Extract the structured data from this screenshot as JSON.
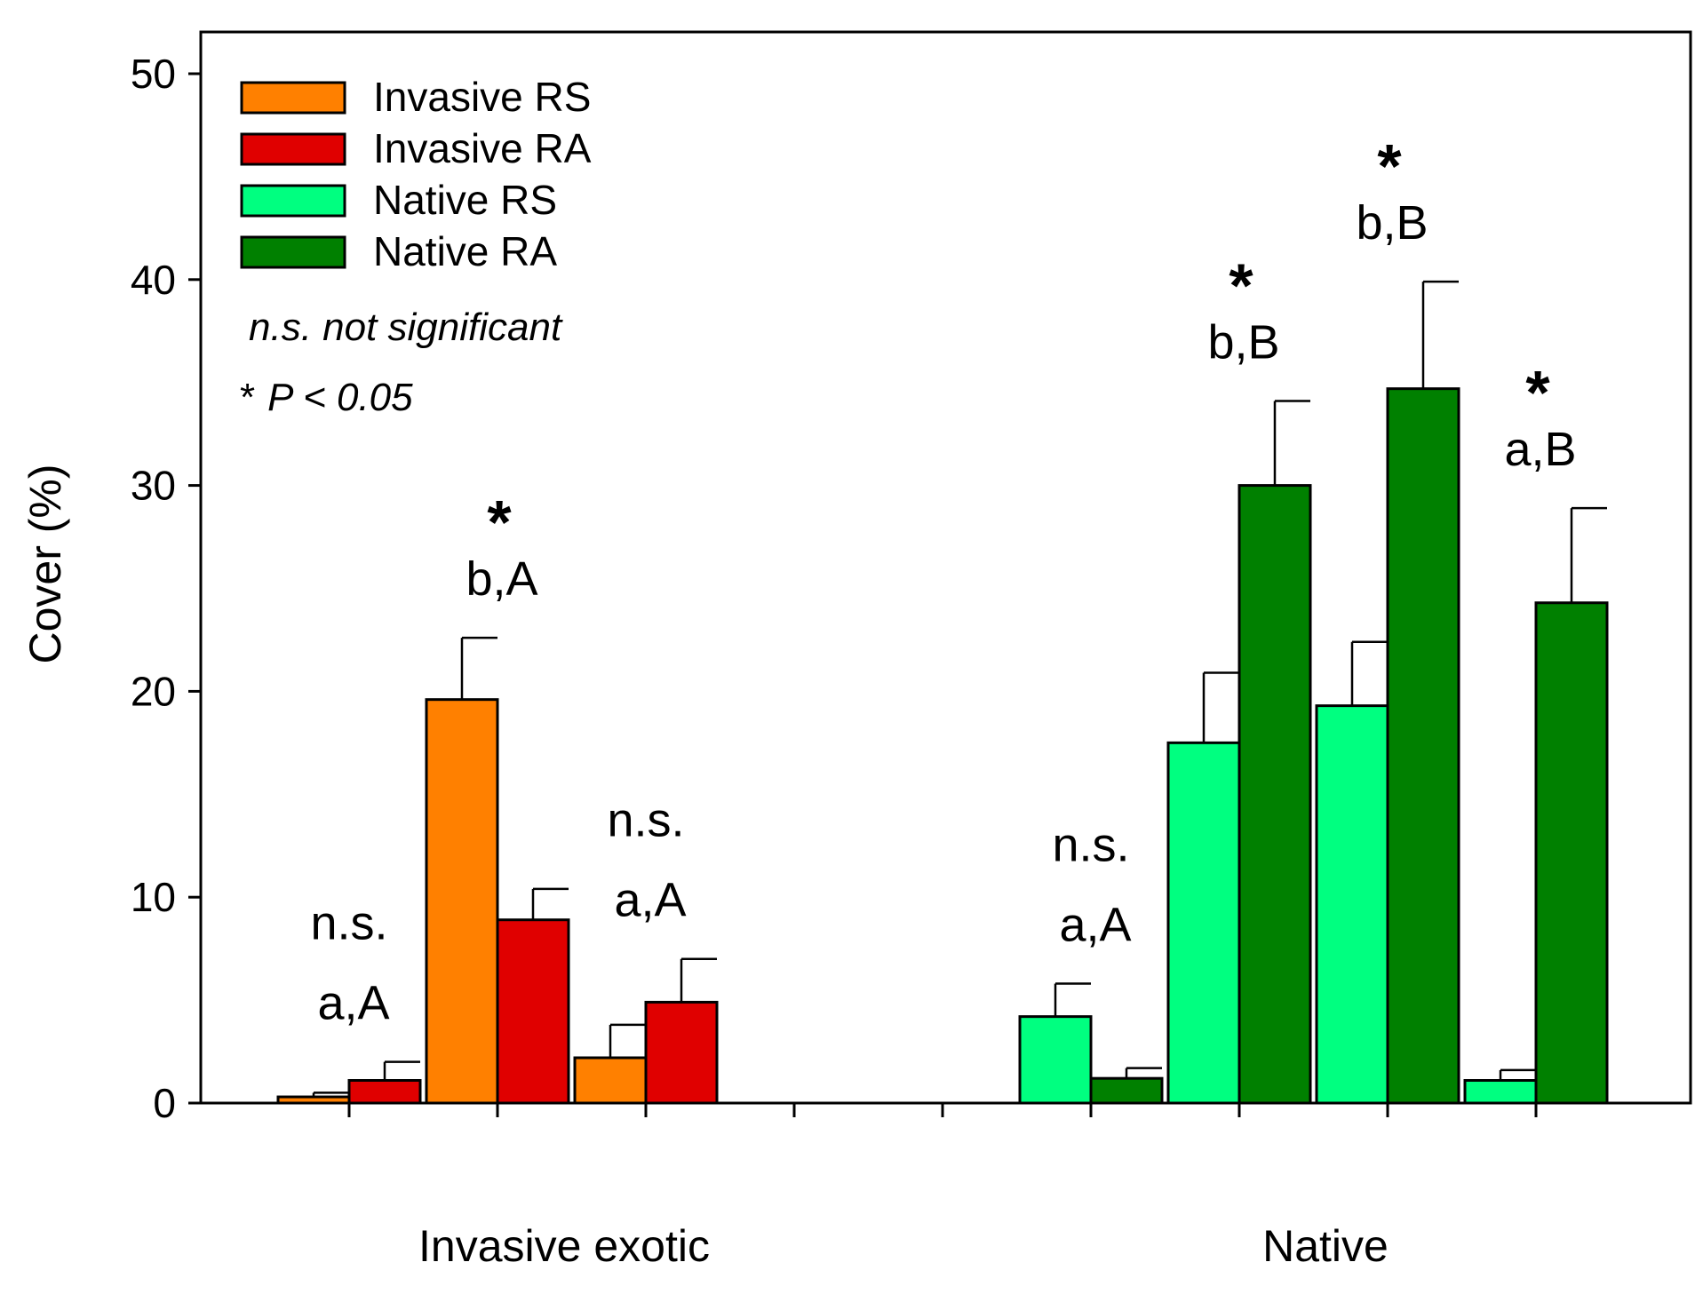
{
  "chart_data": {
    "type": "bar",
    "ylabel": "Cover (%)",
    "ylim": [
      0,
      50
    ],
    "yticks": [
      "0",
      "10",
      "20",
      "30",
      "40",
      "50"
    ],
    "groups": [
      {
        "label": "Invasive exotic",
        "clusters": [
          {
            "bars": [
              {
                "series": "Invasive RS",
                "value": 0.3,
                "err": 0.2
              },
              {
                "series": "Invasive RA",
                "value": 1.1,
                "err": 0.9
              }
            ],
            "letters": "a,A",
            "sig": "n.s."
          },
          {
            "bars": [
              {
                "series": "Invasive RS",
                "value": 19.6,
                "err": 3.0
              },
              {
                "series": "Invasive RA",
                "value": 8.9,
                "err": 1.5
              }
            ],
            "letters": "b,A",
            "sig": "*"
          },
          {
            "bars": [
              {
                "series": "Invasive RS",
                "value": 2.2,
                "err": 1.6
              },
              {
                "series": "Invasive RA",
                "value": 4.9,
                "err": 2.1
              }
            ],
            "letters": "a,A",
            "sig": "n.s."
          }
        ]
      },
      {
        "label": "Native",
        "clusters": [
          {
            "bars": [
              {
                "series": "Native RS",
                "value": 4.2,
                "err": 1.6
              },
              {
                "series": "Native RA",
                "value": 1.2,
                "err": 0.5
              }
            ],
            "letters": "a,A",
            "sig": "n.s."
          },
          {
            "bars": [
              {
                "series": "Native RS",
                "value": 17.5,
                "err": 3.4
              },
              {
                "series": "Native RA",
                "value": 30.0,
                "err": 4.1
              }
            ],
            "letters": "b,B",
            "sig": "*"
          },
          {
            "bars": [
              {
                "series": "Native RS",
                "value": 19.3,
                "err": 3.1
              },
              {
                "series": "Native RA",
                "value": 34.7,
                "err": 5.2
              }
            ],
            "letters": "b,B",
            "sig": "*"
          },
          {
            "bars": [
              {
                "series": "Native RS",
                "value": 1.1,
                "err": 0.5
              },
              {
                "series": "Native RA",
                "value": 24.3,
                "err": 4.6
              }
            ],
            "letters": "a,B",
            "sig": "*"
          }
        ]
      }
    ],
    "legend": {
      "placement": "top-left",
      "entries": [
        {
          "name": "Invasive RS",
          "color": "#ff8000"
        },
        {
          "name": "Invasive RA",
          "color": "#e00000"
        },
        {
          "name": "Native RS",
          "color": "#00ff80"
        },
        {
          "name": "Native RA",
          "color": "#008000"
        }
      ]
    },
    "notes": {
      "ns": "n.s. not significant",
      "p": "P < 0.05",
      "star": "*"
    }
  }
}
